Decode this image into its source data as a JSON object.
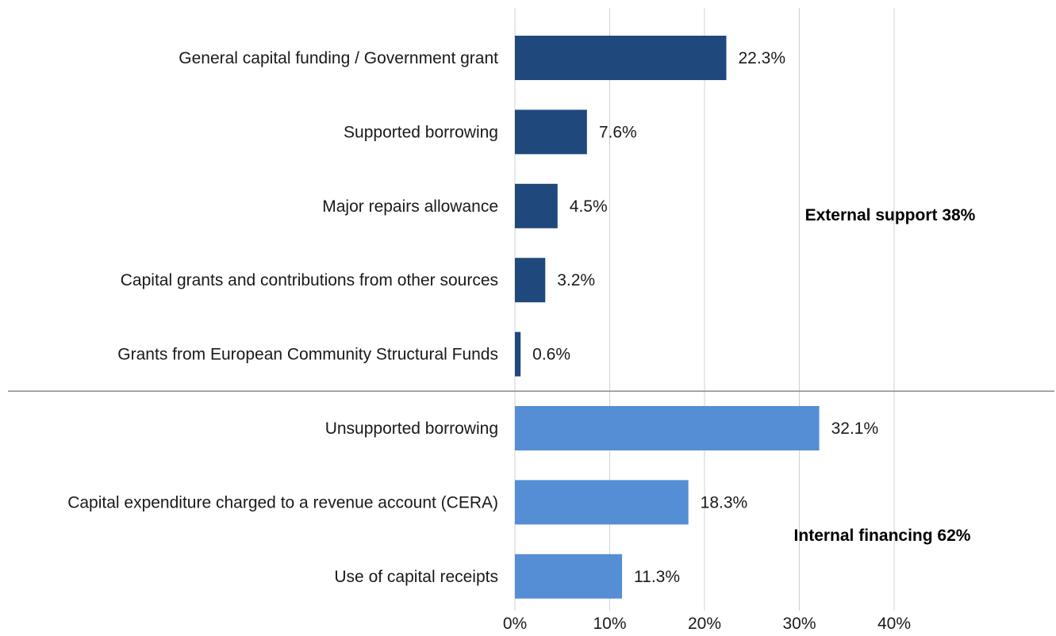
{
  "chart_data": {
    "type": "bar",
    "orientation": "horizontal",
    "categories": [
      "General capital funding / Government grant",
      "Supported borrowing",
      "Major repairs allowance",
      "Capital grants and contributions from other sources",
      "Grants from European Community Structural Funds",
      "Unsupported borrowing",
      "Capital expenditure charged to a revenue account (CERA)",
      "Use of capital receipts"
    ],
    "values": [
      22.3,
      7.6,
      4.5,
      3.2,
      0.6,
      32.1,
      18.3,
      11.3
    ],
    "value_labels": [
      "22.3%",
      "7.6%",
      "4.5%",
      "3.2%",
      "0.6%",
      "32.1%",
      "18.3%",
      "11.3%"
    ],
    "groups": [
      {
        "label": "External support 38%",
        "count": 5,
        "color": "#1f497d"
      },
      {
        "label": "Internal financing 62%",
        "count": 3,
        "color": "#558ed5"
      }
    ],
    "xlim": [
      0,
      40
    ],
    "x_ticks": [
      0,
      10,
      20,
      30,
      40
    ],
    "x_tick_labels": [
      "0%",
      "10%",
      "20%",
      "30%",
      "40%"
    ],
    "grid": "vertical",
    "title": "",
    "xlabel": "",
    "ylabel": ""
  }
}
